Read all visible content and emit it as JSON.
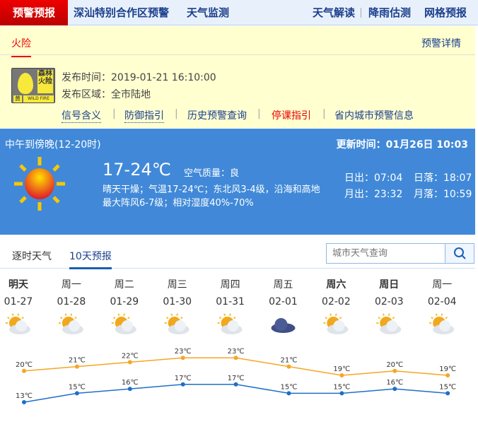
{
  "topnav": {
    "active": "预警预报",
    "left": [
      "深汕特别合作区预警",
      "天气监测"
    ],
    "right": [
      "天气解读",
      "降雨估测",
      "网格预报"
    ]
  },
  "warning": {
    "tab": "火险",
    "detail": "预警详情",
    "badge": {
      "top": "森林火险",
      "level": "黄",
      "en": "WILD FIRE"
    },
    "time": "发布时间：2019-01-21 16:10:00",
    "area": "发布区域：全市陆地",
    "links": [
      "信号含义",
      "防御指引",
      "历史预警查询",
      "停课指引",
      "省内城市预警信息"
    ]
  },
  "now": {
    "period": "中午到傍晚(12-20时)",
    "updated": "更新时间：01月26日 10:03",
    "temp": "17-24℃",
    "aqi": "空气质量：良",
    "desc1": "晴天干燥；气温17-24℃；东北风3-4级，沿海和高地",
    "desc2": "最大阵风6-7级；相对湿度40%-70%",
    "sunrise": "日出：07:04",
    "sunset": "日落：18:07",
    "moonrise": "月出：23:32",
    "moonset": "月落：10:59",
    "icon": "sunny-icon"
  },
  "tabs": [
    "逐时天气",
    "10天预报"
  ],
  "search": {
    "placeholder": "城市天气查询"
  },
  "colors": {
    "high": "#f5a623",
    "low": "#1e6fc8",
    "nav": "#1b3f8c",
    "red": "#e00000"
  },
  "chart_data": {
    "type": "line",
    "categories": [
      "明天",
      "周一",
      "周二",
      "周三",
      "周四",
      "周五",
      "周六",
      "周日",
      "周一"
    ],
    "dates": [
      "01-27",
      "01-28",
      "01-29",
      "01-30",
      "01-31",
      "02-01",
      "02-02",
      "02-03",
      "02-04"
    ],
    "bold": [
      true,
      false,
      false,
      false,
      false,
      false,
      true,
      true,
      false
    ],
    "icons": [
      "partly-cloudy",
      "partly-cloudy",
      "partly-cloudy",
      "cloudy-sun",
      "cloudy-sun",
      "overcast",
      "cloudy-sun",
      "cloudy-sun",
      "cloudy-sun"
    ],
    "series": [
      {
        "values": [
          20,
          21,
          22,
          23,
          23,
          21,
          19,
          20,
          19
        ]
      },
      {
        "values": [
          13,
          15,
          16,
          17,
          17,
          15,
          15,
          16,
          15
        ]
      }
    ],
    "unit": "℃"
  }
}
